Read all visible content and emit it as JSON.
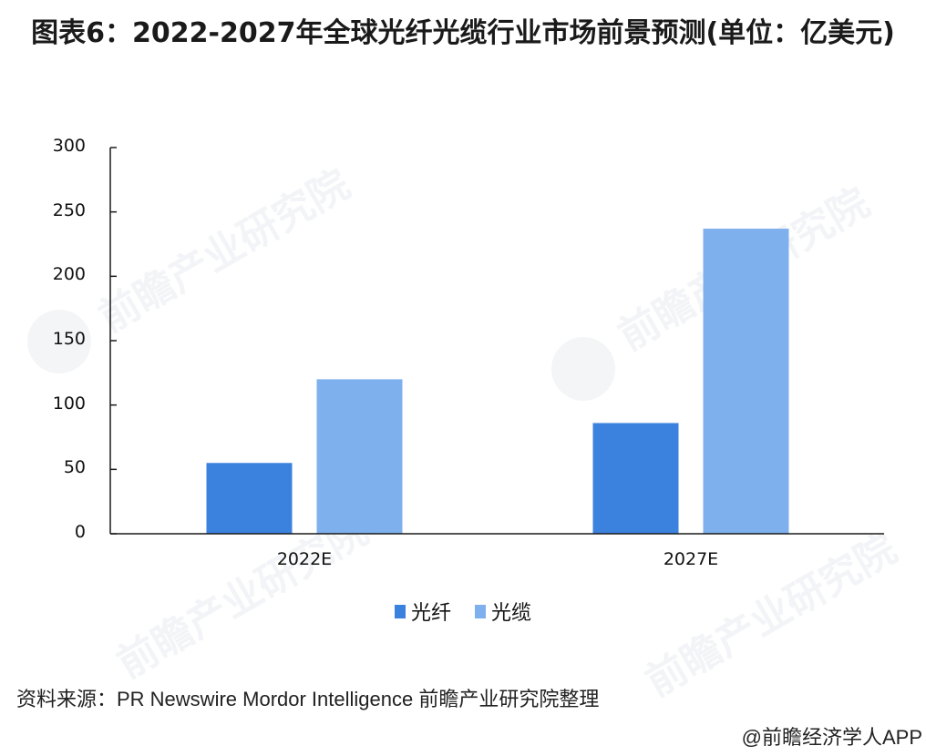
{
  "title": "图表6：2022-2027年全球光纤光缆行业市场前景预测(单位：亿美元)",
  "watermark": "前瞻产业研究院",
  "source": "资料来源：PR Newswire Mordor Intelligence 前瞻产业研究院整理",
  "credit": "@前瞻经济学人APP",
  "colors": {
    "fiber": "#3b82de",
    "cable": "#7fb0ee",
    "axis": "#1a1a1a"
  },
  "chart_data": {
    "type": "bar",
    "title": "图表6：2022-2027年全球光纤光缆行业市场前景预测(单位：亿美元)",
    "xlabel": "",
    "ylabel": "",
    "categories": [
      "2022E",
      "2027E"
    ],
    "series": [
      {
        "name": "光纤",
        "values": [
          55,
          86
        ],
        "color": "#3b82de"
      },
      {
        "name": "光缆",
        "values": [
          120,
          237
        ],
        "color": "#7fb0ee"
      }
    ],
    "ylim": [
      0,
      300
    ],
    "yticks": [
      0,
      50,
      100,
      150,
      200,
      250,
      300
    ],
    "grid": false,
    "legend_position": "bottom"
  }
}
